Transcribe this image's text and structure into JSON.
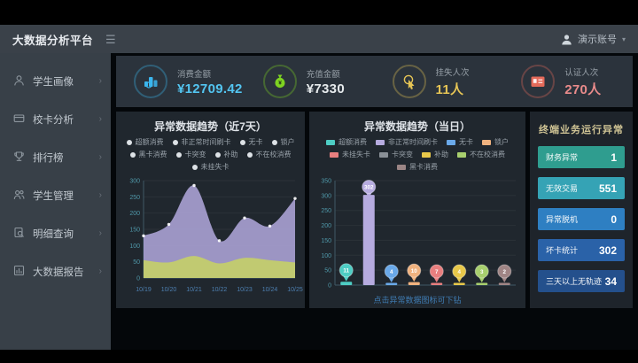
{
  "header": {
    "title": "大数据分析平台",
    "user": "演示账号"
  },
  "sidebar": {
    "items": [
      {
        "label": "学生画像",
        "icon": "user-icon"
      },
      {
        "label": "校卡分析",
        "icon": "card-icon"
      },
      {
        "label": "排行榜",
        "icon": "trophy-icon"
      },
      {
        "label": "学生管理",
        "icon": "users-icon"
      },
      {
        "label": "明细查询",
        "icon": "search-doc-icon"
      },
      {
        "label": "大数据报告",
        "icon": "report-icon"
      }
    ]
  },
  "kpis": [
    {
      "label": "消费金额",
      "value": "¥12709.42",
      "value_color": "#53c5f1",
      "icon": "coins-icon",
      "icon_color": "#3bb6ee"
    },
    {
      "label": "充值金额",
      "value": "¥7330",
      "value_color": "#e6eaec",
      "icon": "money-bag-icon",
      "icon_color": "#7ed321"
    },
    {
      "label": "挂失人次",
      "value": "11人",
      "value_color": "#e5c455",
      "icon": "hand-click-icon",
      "icon_color": "#e5c455"
    },
    {
      "label": "认证人次",
      "value": "270人",
      "value_color": "#e98b8b",
      "icon": "id-card-icon",
      "icon_color": "#e36a5a"
    }
  ],
  "right_panel": {
    "title": "终端业务运行异常",
    "rows": [
      {
        "label": "财务异常",
        "value": "1",
        "color": "#2f9d8f"
      },
      {
        "label": "无效交易",
        "value": "551",
        "color": "#35a3b5"
      },
      {
        "label": "异常脱机",
        "value": "0",
        "color": "#2e7fc2"
      },
      {
        "label": "坏卡统计",
        "value": "302",
        "color": "#2a62a8"
      },
      {
        "label": "三天以上无轨迹",
        "value": "34",
        "color": "#24508c"
      }
    ]
  },
  "middle_chart": {
    "footer_link": "点击异常数据图标可下钻"
  },
  "chart_data": [
    {
      "type": "area",
      "title": "异常数据趋势（近7天）",
      "x": [
        "10/19",
        "10/20",
        "10/21",
        "10/22",
        "10/23",
        "10/24",
        "10/25"
      ],
      "series": [
        {
          "name": "purple_area",
          "color": "#a79ed0",
          "values": [
            130,
            165,
            285,
            115,
            185,
            160,
            245
          ]
        },
        {
          "name": "green_area",
          "color": "#c3cc6d",
          "values": [
            55,
            48,
            68,
            45,
            62,
            55,
            48
          ]
        }
      ],
      "ylim": [
        0,
        300
      ],
      "yticks": [
        0,
        50,
        100,
        150,
        200,
        250,
        300
      ],
      "legend": [
        "超额消费",
        "非正常时间刷卡",
        "无卡",
        "锁户",
        "黑卡消费",
        "卡突变",
        "补助",
        "不在校消费",
        "未挂失卡"
      ],
      "legend_position": "top",
      "grid": true
    },
    {
      "type": "bar",
      "title": "异常数据趋势（当日）",
      "categories": [
        "超额消费",
        "非正常时间刷卡",
        "无卡",
        "锁户",
        "未挂失卡",
        "补助",
        "不在校消费",
        "黑卡消费"
      ],
      "values": [
        11,
        302,
        4,
        10,
        7,
        4,
        3,
        2
      ],
      "colors": [
        "#4ecdc4",
        "#b6abdf",
        "#6aa9e9",
        "#f0b27f",
        "#e87f7f",
        "#e8c84a",
        "#a8cf6e",
        "#a08585"
      ],
      "ylim": [
        0,
        350
      ],
      "yticks": [
        0,
        50,
        100,
        150,
        200,
        250,
        300,
        350
      ],
      "legend": [
        {
          "label": "超额消费",
          "color": "#4ecdc4"
        },
        {
          "label": "非正常时间刷卡",
          "color": "#b6abdf"
        },
        {
          "label": "无卡",
          "color": "#6aa9e9"
        },
        {
          "label": "锁户",
          "color": "#f0b27f"
        },
        {
          "label": "未挂失卡",
          "color": "#e87f7f"
        },
        {
          "label": "卡突变",
          "color": "#8a9097"
        },
        {
          "label": "补助",
          "color": "#e8c84a"
        },
        {
          "label": "不在校消费",
          "color": "#a8cf6e"
        },
        {
          "label": "黑卡消费",
          "color": "#9b8585"
        }
      ],
      "legend_position": "top",
      "grid": true
    }
  ]
}
